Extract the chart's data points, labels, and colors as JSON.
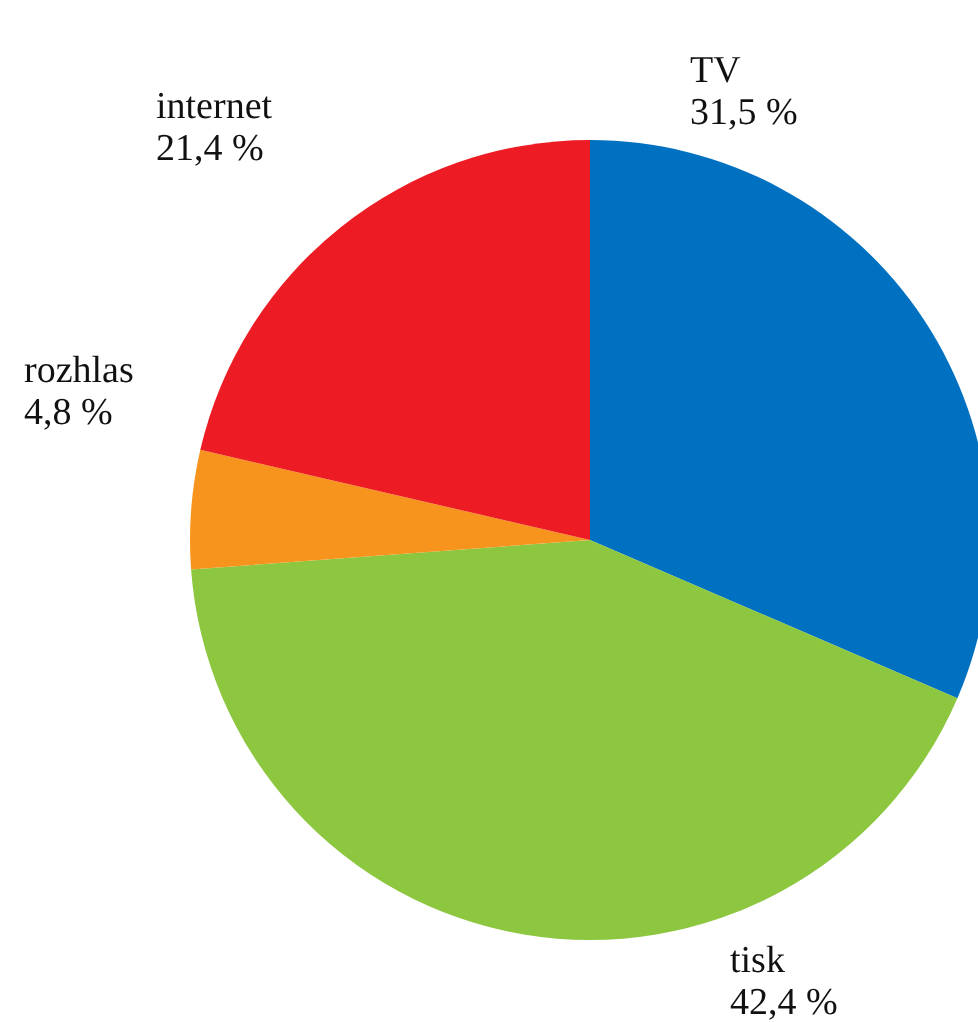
{
  "chart_data": {
    "type": "pie",
    "categories": [
      "TV",
      "tisk",
      "rozhlas",
      "internet"
    ],
    "values": [
      31.5,
      42.4,
      4.8,
      21.4
    ],
    "colors": [
      "#0070c0",
      "#8dc63f",
      "#f7941d",
      "#ed1c24"
    ],
    "value_labels": [
      "31,5 %",
      "42,4 %",
      "4,8 %",
      "21,4 %"
    ],
    "legend": false
  }
}
